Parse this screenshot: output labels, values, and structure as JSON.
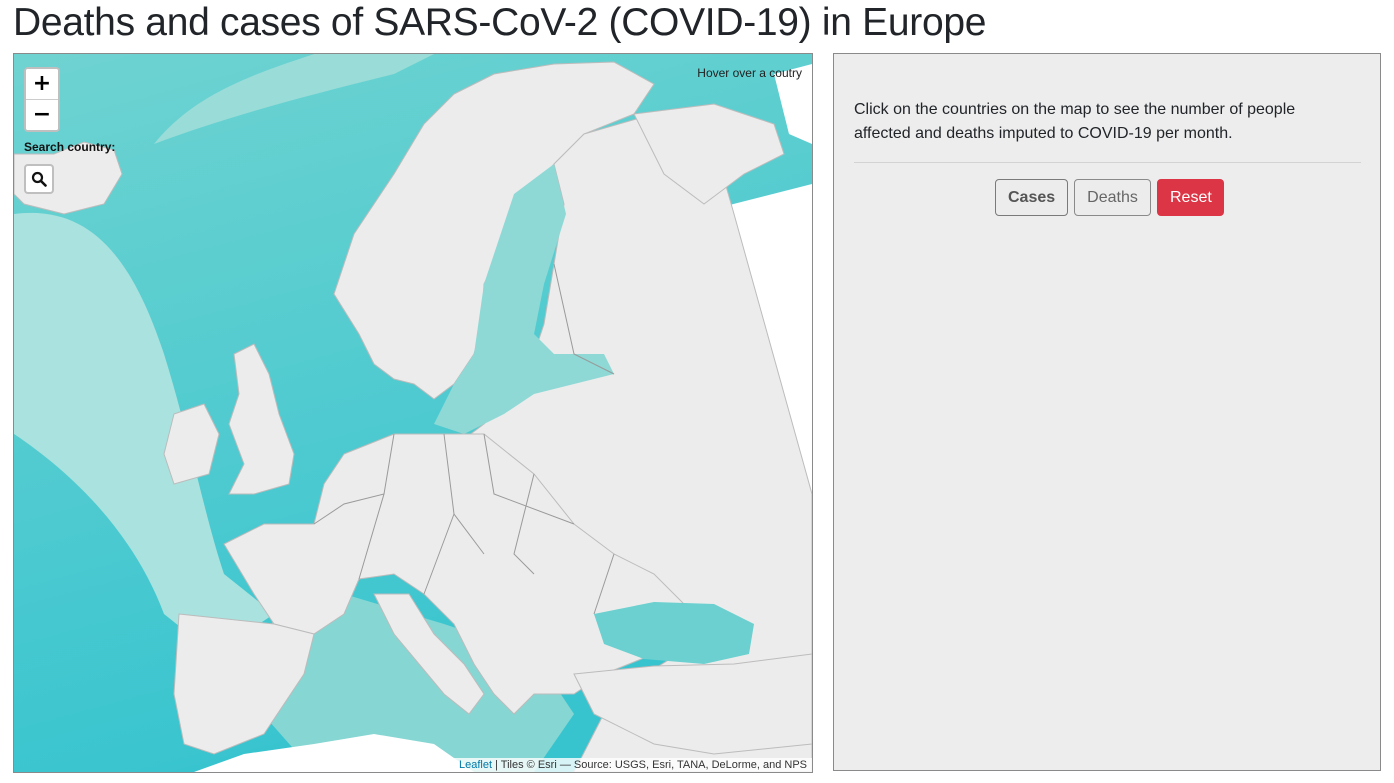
{
  "page": {
    "title": "Deaths and cases of SARS-CoV-2 (COVID-19) in Europe"
  },
  "map": {
    "zoom_in_label": "+",
    "zoom_out_label": "−",
    "search_label": "Search country:",
    "search_icon": "search-icon",
    "hover_hint": "Hover over a coutry",
    "attribution": {
      "link_text": "Leaflet",
      "text": " | Tiles © Esri — Source: USGS, Esri, TANA, DeLorme, and NPS"
    },
    "colors": {
      "sea_deep": "#4dcfcf",
      "sea": "#7fd6d3",
      "sea_shallow": "#b3e4e0",
      "land": "#ececec",
      "border": "#9a9a9a"
    }
  },
  "panel": {
    "instructions": "Click on the countries on the map to see the number of people affected and deaths imputed to COVID-19 per month.",
    "buttons": {
      "cases": "Cases",
      "deaths": "Deaths",
      "reset": "Reset"
    },
    "colors": {
      "reset": "#dc3545",
      "background": "#ededed"
    }
  }
}
